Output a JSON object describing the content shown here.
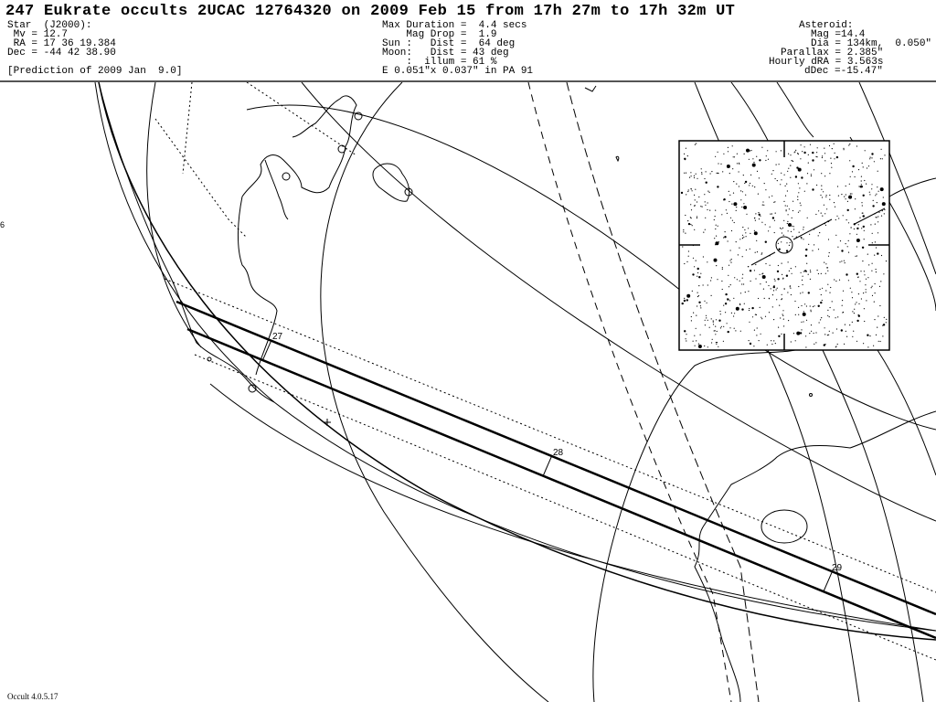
{
  "title": "247 Eukrate occults 2UCAC 12764320 on 2009 Feb 15 from 17h 27m to 17h 32m UT",
  "star": {
    "heading": "Star  (J2000):",
    "mv": " Mv = 12.7",
    "ra": " RA = 17 36 19.384",
    "dec": "Dec = -44 42 38.90",
    "prediction": "[Prediction of 2009 Jan  9.0]"
  },
  "event": {
    "max_duration": "Max Duration =  4.4 secs",
    "mag_drop": "    Mag Drop =  1.9",
    "sun": "Sun :   Dist =  64 deg",
    "moon": "Moon:   Dist = 43 deg",
    "illum": "    :  illum = 61 %",
    "ellipse": "E 0.051\"x 0.037\" in PA 91"
  },
  "asteroid": {
    "heading": "Asteroid:",
    "mag": "Mag =14.4",
    "dia": "Dia = 134km,  0.050\"",
    "parallax": "Parallax = 2.385\"",
    "hourly_dra": "Hourly dRA = 3.563s",
    "ddec": "dDec =-15.47\""
  },
  "path_minutes": [
    "27",
    "28",
    "29"
  ],
  "edge_label": "6",
  "version": "Occult 4.0.5.17"
}
